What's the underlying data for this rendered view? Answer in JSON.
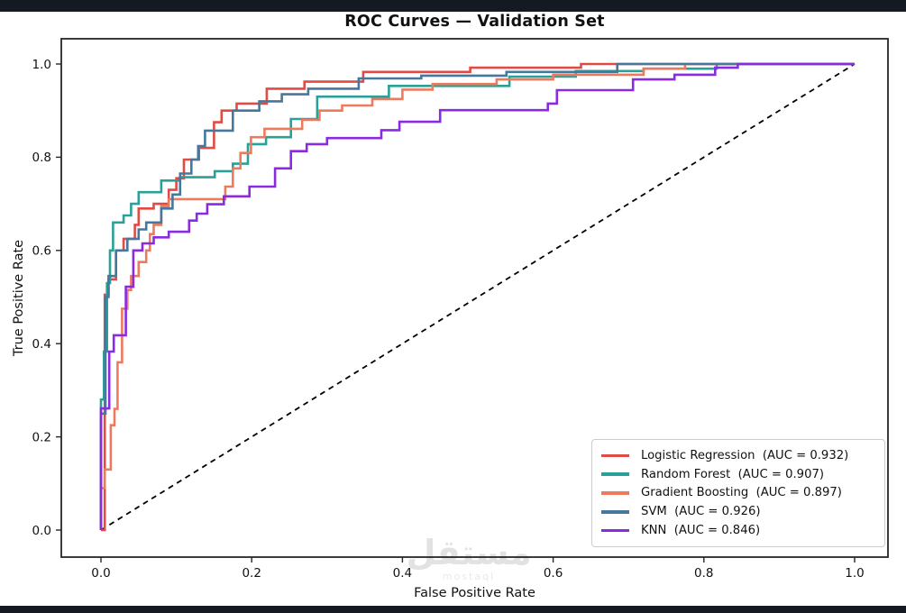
{
  "page": {
    "top_bar_color": "#141922",
    "bottom_bar_color": "#141922",
    "background": "#ffffff",
    "text_color": "#111111",
    "axis_color": "#262626"
  },
  "watermark": {
    "text": "مستقل",
    "subtext": "mostaql",
    "color": "#e2e2e2"
  },
  "chart_data": {
    "type": "line",
    "subtype": "roc-step-curves",
    "title": "ROC Curves — Validation Set",
    "xlabel": "False Positive Rate",
    "ylabel": "True Positive Rate",
    "x_ticks": [
      "0.0",
      "0.2",
      "0.4",
      "0.6",
      "0.8",
      "1.0"
    ],
    "y_ticks": [
      "0.0",
      "0.2",
      "0.4",
      "0.6",
      "0.8",
      "1.0"
    ],
    "xlim": [
      -0.053,
      1.044
    ],
    "ylim": [
      -0.056,
      1.056
    ],
    "grid": false,
    "legend_position": "lower right",
    "reference_line": {
      "name": "chance-diagonal",
      "from": [
        0,
        0
      ],
      "to": [
        1,
        1
      ],
      "style": "dashed",
      "color": "#000000"
    },
    "series": [
      {
        "name": "Logistic Regression",
        "auc": 0.932,
        "legend_label": "Logistic Regression  (AUC = 0.932)",
        "color": "#e04b45",
        "points": [
          [
            0,
            0
          ],
          [
            0.005,
            0
          ],
          [
            0.005,
            0.505
          ],
          [
            0.01,
            0.505
          ],
          [
            0.01,
            0.538
          ],
          [
            0.02,
            0.538
          ],
          [
            0.02,
            0.6
          ],
          [
            0.03,
            0.6
          ],
          [
            0.03,
            0.625
          ],
          [
            0.045,
            0.625
          ],
          [
            0.045,
            0.655
          ],
          [
            0.05,
            0.655
          ],
          [
            0.05,
            0.69
          ],
          [
            0.07,
            0.69
          ],
          [
            0.07,
            0.7
          ],
          [
            0.09,
            0.7
          ],
          [
            0.09,
            0.73
          ],
          [
            0.1,
            0.73
          ],
          [
            0.1,
            0.755
          ],
          [
            0.11,
            0.755
          ],
          [
            0.11,
            0.795
          ],
          [
            0.13,
            0.795
          ],
          [
            0.13,
            0.82
          ],
          [
            0.15,
            0.82
          ],
          [
            0.15,
            0.875
          ],
          [
            0.16,
            0.875
          ],
          [
            0.16,
            0.9
          ],
          [
            0.18,
            0.9
          ],
          [
            0.18,
            0.915
          ],
          [
            0.22,
            0.915
          ],
          [
            0.22,
            0.947
          ],
          [
            0.27,
            0.947
          ],
          [
            0.27,
            0.962
          ],
          [
            0.348,
            0.962
          ],
          [
            0.348,
            0.983
          ],
          [
            0.49,
            0.983
          ],
          [
            0.49,
            0.992
          ],
          [
            0.637,
            0.992
          ],
          [
            0.637,
            1
          ],
          [
            1,
            1
          ]
        ]
      },
      {
        "name": "Random Forest",
        "auc": 0.907,
        "legend_label": "Random Forest  (AUC = 0.907)",
        "color": "#2aa198",
        "points": [
          [
            0,
            0
          ],
          [
            0,
            0.28
          ],
          [
            0.004,
            0.28
          ],
          [
            0.004,
            0.383
          ],
          [
            0.008,
            0.383
          ],
          [
            0.008,
            0.53
          ],
          [
            0.012,
            0.53
          ],
          [
            0.012,
            0.6
          ],
          [
            0.016,
            0.6
          ],
          [
            0.016,
            0.66
          ],
          [
            0.03,
            0.66
          ],
          [
            0.03,
            0.675
          ],
          [
            0.04,
            0.675
          ],
          [
            0.04,
            0.7
          ],
          [
            0.05,
            0.7
          ],
          [
            0.05,
            0.725
          ],
          [
            0.08,
            0.725
          ],
          [
            0.08,
            0.75
          ],
          [
            0.105,
            0.75
          ],
          [
            0.105,
            0.757
          ],
          [
            0.151,
            0.757
          ],
          [
            0.151,
            0.77
          ],
          [
            0.175,
            0.77
          ],
          [
            0.175,
            0.786
          ],
          [
            0.195,
            0.786
          ],
          [
            0.195,
            0.828
          ],
          [
            0.219,
            0.828
          ],
          [
            0.219,
            0.843
          ],
          [
            0.252,
            0.843
          ],
          [
            0.252,
            0.882
          ],
          [
            0.287,
            0.882
          ],
          [
            0.287,
            0.93
          ],
          [
            0.382,
            0.93
          ],
          [
            0.382,
            0.953
          ],
          [
            0.542,
            0.953
          ],
          [
            0.542,
            0.973
          ],
          [
            0.63,
            0.973
          ],
          [
            0.63,
            0.985
          ],
          [
            0.72,
            0.985
          ],
          [
            0.72,
            0.99
          ],
          [
            0.817,
            0.99
          ],
          [
            0.817,
            1
          ],
          [
            1,
            1
          ]
        ]
      },
      {
        "name": "Gradient Boosting",
        "auc": 0.897,
        "legend_label": "Gradient Boosting  (AUC = 0.897)",
        "color": "#ee7a5e",
        "points": [
          [
            0,
            0
          ],
          [
            0,
            0.09
          ],
          [
            0.005,
            0.09
          ],
          [
            0.005,
            0.13
          ],
          [
            0.013,
            0.13
          ],
          [
            0.013,
            0.225
          ],
          [
            0.018,
            0.225
          ],
          [
            0.018,
            0.26
          ],
          [
            0.022,
            0.26
          ],
          [
            0.022,
            0.36
          ],
          [
            0.028,
            0.36
          ],
          [
            0.028,
            0.475
          ],
          [
            0.035,
            0.475
          ],
          [
            0.035,
            0.515
          ],
          [
            0.04,
            0.515
          ],
          [
            0.04,
            0.545
          ],
          [
            0.05,
            0.545
          ],
          [
            0.05,
            0.575
          ],
          [
            0.06,
            0.575
          ],
          [
            0.06,
            0.6
          ],
          [
            0.065,
            0.6
          ],
          [
            0.065,
            0.635
          ],
          [
            0.07,
            0.635
          ],
          [
            0.07,
            0.655
          ],
          [
            0.08,
            0.655
          ],
          [
            0.08,
            0.695
          ],
          [
            0.09,
            0.695
          ],
          [
            0.09,
            0.71
          ],
          [
            0.165,
            0.71
          ],
          [
            0.165,
            0.737
          ],
          [
            0.175,
            0.737
          ],
          [
            0.175,
            0.776
          ],
          [
            0.185,
            0.776
          ],
          [
            0.185,
            0.809
          ],
          [
            0.199,
            0.809
          ],
          [
            0.199,
            0.843
          ],
          [
            0.217,
            0.843
          ],
          [
            0.217,
            0.861
          ],
          [
            0.267,
            0.861
          ],
          [
            0.267,
            0.88
          ],
          [
            0.29,
            0.88
          ],
          [
            0.29,
            0.9
          ],
          [
            0.32,
            0.9
          ],
          [
            0.32,
            0.911
          ],
          [
            0.36,
            0.911
          ],
          [
            0.36,
            0.925
          ],
          [
            0.4,
            0.925
          ],
          [
            0.4,
            0.945
          ],
          [
            0.44,
            0.945
          ],
          [
            0.44,
            0.957
          ],
          [
            0.525,
            0.957
          ],
          [
            0.525,
            0.967
          ],
          [
            0.6,
            0.967
          ],
          [
            0.6,
            0.977
          ],
          [
            0.72,
            0.977
          ],
          [
            0.72,
            0.99
          ],
          [
            0.775,
            0.99
          ],
          [
            0.775,
            1
          ],
          [
            1,
            1
          ]
        ]
      },
      {
        "name": "SVM",
        "auc": 0.926,
        "legend_label": "SVM  (AUC = 0.926)",
        "color": "#45789c",
        "points": [
          [
            0,
            0
          ],
          [
            0,
            0.25
          ],
          [
            0.006,
            0.25
          ],
          [
            0.006,
            0.5
          ],
          [
            0.01,
            0.5
          ],
          [
            0.01,
            0.545
          ],
          [
            0.02,
            0.545
          ],
          [
            0.02,
            0.6
          ],
          [
            0.035,
            0.6
          ],
          [
            0.035,
            0.625
          ],
          [
            0.05,
            0.625
          ],
          [
            0.05,
            0.645
          ],
          [
            0.06,
            0.645
          ],
          [
            0.06,
            0.66
          ],
          [
            0.08,
            0.66
          ],
          [
            0.08,
            0.69
          ],
          [
            0.095,
            0.69
          ],
          [
            0.095,
            0.72
          ],
          [
            0.105,
            0.72
          ],
          [
            0.105,
            0.765
          ],
          [
            0.12,
            0.765
          ],
          [
            0.12,
            0.795
          ],
          [
            0.129,
            0.795
          ],
          [
            0.129,
            0.824
          ],
          [
            0.138,
            0.824
          ],
          [
            0.138,
            0.857
          ],
          [
            0.175,
            0.857
          ],
          [
            0.175,
            0.9
          ],
          [
            0.21,
            0.9
          ],
          [
            0.21,
            0.92
          ],
          [
            0.24,
            0.92
          ],
          [
            0.24,
            0.935
          ],
          [
            0.275,
            0.935
          ],
          [
            0.275,
            0.947
          ],
          [
            0.342,
            0.947
          ],
          [
            0.342,
            0.969
          ],
          [
            0.425,
            0.969
          ],
          [
            0.425,
            0.975
          ],
          [
            0.538,
            0.975
          ],
          [
            0.538,
            0.983
          ],
          [
            0.685,
            0.983
          ],
          [
            0.685,
            1
          ],
          [
            1,
            1
          ]
        ]
      },
      {
        "name": "KNN",
        "auc": 0.846,
        "legend_label": "KNN  (AUC = 0.846)",
        "color": "#8a2be2",
        "points": [
          [
            0,
            0
          ],
          [
            0,
            0.261
          ],
          [
            0.011,
            0.261
          ],
          [
            0.011,
            0.383
          ],
          [
            0.017,
            0.383
          ],
          [
            0.017,
            0.418
          ],
          [
            0.033,
            0.418
          ],
          [
            0.033,
            0.522
          ],
          [
            0.043,
            0.522
          ],
          [
            0.043,
            0.6
          ],
          [
            0.055,
            0.6
          ],
          [
            0.055,
            0.615
          ],
          [
            0.07,
            0.615
          ],
          [
            0.07,
            0.628
          ],
          [
            0.09,
            0.628
          ],
          [
            0.09,
            0.64
          ],
          [
            0.117,
            0.64
          ],
          [
            0.117,
            0.664
          ],
          [
            0.127,
            0.664
          ],
          [
            0.127,
            0.679
          ],
          [
            0.141,
            0.679
          ],
          [
            0.141,
            0.699
          ],
          [
            0.163,
            0.699
          ],
          [
            0.163,
            0.716
          ],
          [
            0.197,
            0.716
          ],
          [
            0.197,
            0.737
          ],
          [
            0.231,
            0.737
          ],
          [
            0.231,
            0.776
          ],
          [
            0.252,
            0.776
          ],
          [
            0.252,
            0.813
          ],
          [
            0.273,
            0.813
          ],
          [
            0.273,
            0.828
          ],
          [
            0.3,
            0.828
          ],
          [
            0.3,
            0.841
          ],
          [
            0.372,
            0.841
          ],
          [
            0.372,
            0.858
          ],
          [
            0.396,
            0.858
          ],
          [
            0.396,
            0.876
          ],
          [
            0.45,
            0.876
          ],
          [
            0.45,
            0.901
          ],
          [
            0.593,
            0.901
          ],
          [
            0.593,
            0.915
          ],
          [
            0.605,
            0.915
          ],
          [
            0.605,
            0.944
          ],
          [
            0.706,
            0.944
          ],
          [
            0.706,
            0.967
          ],
          [
            0.761,
            0.967
          ],
          [
            0.761,
            0.977
          ],
          [
            0.815,
            0.977
          ],
          [
            0.815,
            0.992
          ],
          [
            0.845,
            0.992
          ],
          [
            0.845,
            1
          ],
          [
            1,
            1
          ]
        ]
      }
    ]
  }
}
